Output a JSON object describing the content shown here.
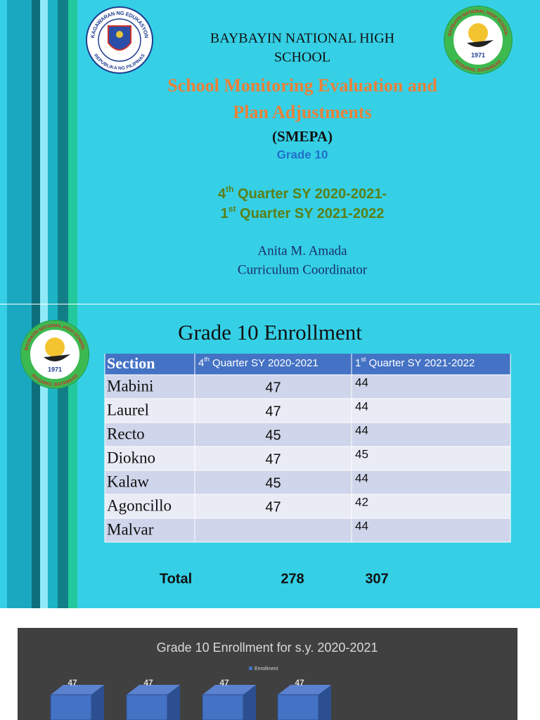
{
  "slide1": {
    "school": [
      "BAYBAYIN NATIONAL HIGH",
      "SCHOOL"
    ],
    "title": [
      "School Monitoring Evaluation  and",
      "Plan Adjustments"
    ],
    "acronym": "(SMEPA)",
    "grade": "Grade 10",
    "quarters": [
      {
        "num": "4",
        "sup": "th",
        "rest": " Quarter SY 2020-2021-"
      },
      {
        "num": "1",
        "sup": "st",
        "rest": " Quarter SY 2021-2022"
      }
    ],
    "name": "Anita M. Amada",
    "position": "Curriculum Coordinator"
  },
  "logos": {
    "deped": {
      "top": "KAGAWARAN NG EDUKASYON",
      "bottom": "REPUBLIKA NG PILIPINAS"
    },
    "school": {
      "top": "BAYBAYIN NATIONAL HIGH SCHOOL",
      "year": "1971",
      "bottom": "ROSARIO, BATANGAS"
    }
  },
  "slide2": {
    "title": "Grade 10 Enrollment",
    "table": {
      "header": [
        {
          "text": "Section"
        },
        {
          "num": "4",
          "sup": "th",
          "rest": " Quarter SY 2020-2021"
        },
        {
          "num": "1",
          "sup": "st",
          "rest": " Quarter SY 2021-2022"
        }
      ],
      "rows": [
        [
          "Mabini",
          47,
          44
        ],
        [
          "Laurel",
          47,
          44
        ],
        [
          "Recto",
          45,
          44
        ],
        [
          "Diokno",
          47,
          45
        ],
        [
          "Kalaw",
          45,
          44
        ],
        [
          "Agoncillo",
          47,
          42
        ],
        [
          "Malvar",
          null,
          44
        ]
      ]
    },
    "total": {
      "label": "Total",
      "values": [
        278,
        307
      ]
    }
  },
  "chart_data": {
    "type": "bar",
    "title": "Grade 10 Enrollment for s.y. 2020-2021",
    "categories": [
      null,
      null,
      null,
      null
    ],
    "series": [
      {
        "name": "Enrollment",
        "color": "#4472c4",
        "values": [
          47,
          47,
          47,
          47
        ]
      }
    ]
  }
}
